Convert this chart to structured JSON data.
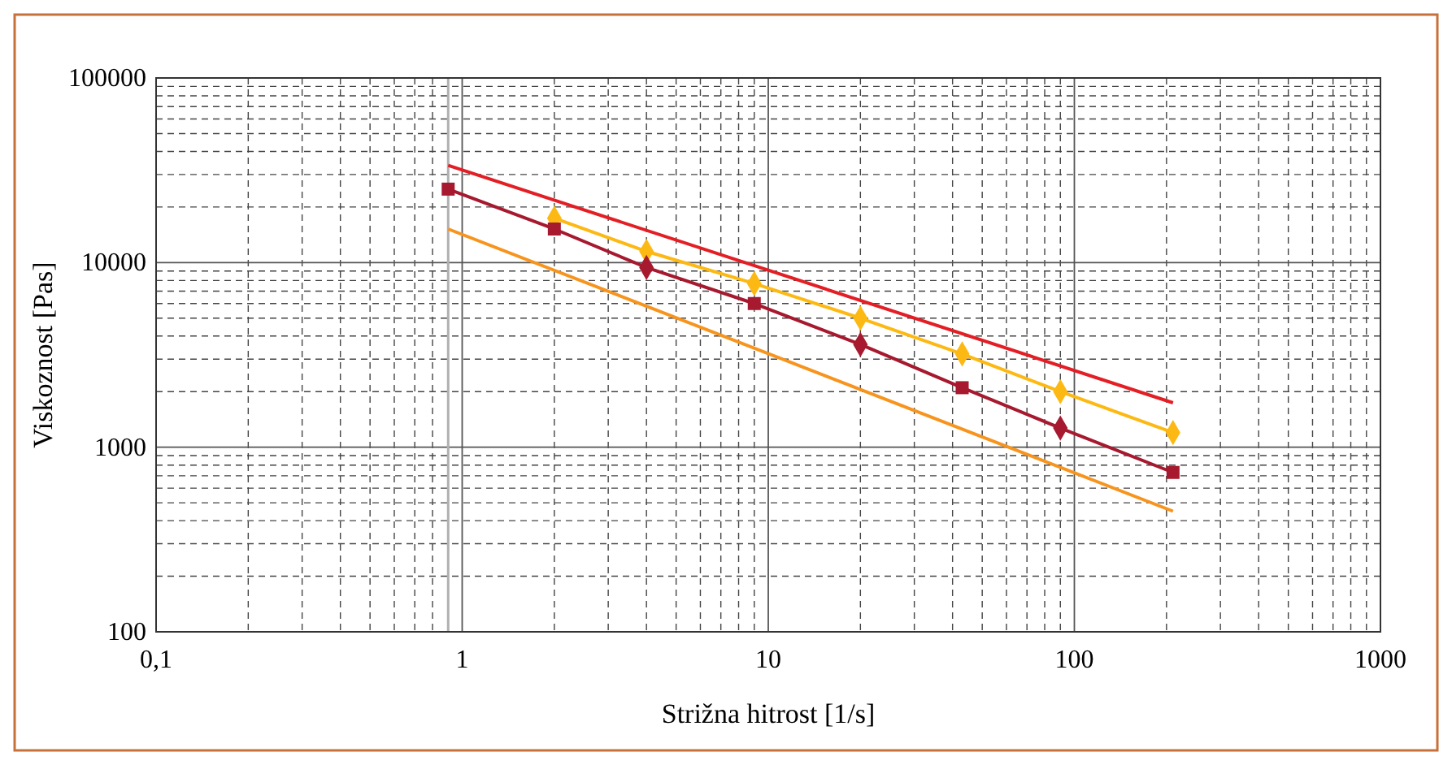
{
  "chart_data": {
    "type": "line",
    "xlabel": "Strižna hitrost [1/s]",
    "ylabel": "Viskoznost [Pas]",
    "log": "xy",
    "grid": true,
    "xlim": [
      0.1,
      1000
    ],
    "xticks": [
      {
        "value": 0.1,
        "label": "0,1"
      },
      1,
      10,
      100,
      1000
    ],
    "ylim": [
      100,
      100000
    ],
    "yticks": [
      100,
      1000,
      10000,
      100000
    ],
    "ref_lines": [
      {
        "axis": "x",
        "value": 0.9,
        "color": "#b0b0b0"
      }
    ],
    "series": [
      {
        "color": "#e31e24",
        "marker": "none",
        "x": [
          0.9,
          210
        ],
        "values": [
          33600,
          1740
        ]
      },
      {
        "color": "#f7941d",
        "marker": "none",
        "x": [
          0.9,
          210
        ],
        "values": [
          15200,
          450
        ]
      },
      {
        "color": "#fdb913",
        "marker": "diamond",
        "x": [
          2,
          4,
          9,
          20,
          43,
          90,
          210
        ],
        "values": [
          17400,
          11500,
          7700,
          5000,
          3200,
          2000,
          1200
        ]
      },
      {
        "color": "#a6192e",
        "marker": "none",
        "x": [
          0.9,
          2,
          4,
          9,
          20,
          43,
          90,
          210
        ],
        "values": [
          25000,
          15200,
          9400,
          6000,
          3600,
          2100,
          1270,
          730
        ]
      },
      {
        "type": "scatter",
        "color": "#a6192e",
        "marker": "square",
        "x": [
          0.9,
          2,
          9,
          43,
          210
        ],
        "values": [
          25000,
          15200,
          6000,
          2100,
          730
        ]
      },
      {
        "type": "scatter",
        "color": "#a6192e",
        "marker": "diamond",
        "x": [
          4,
          20,
          90
        ],
        "values": [
          9400,
          3600,
          1270
        ]
      }
    ]
  }
}
